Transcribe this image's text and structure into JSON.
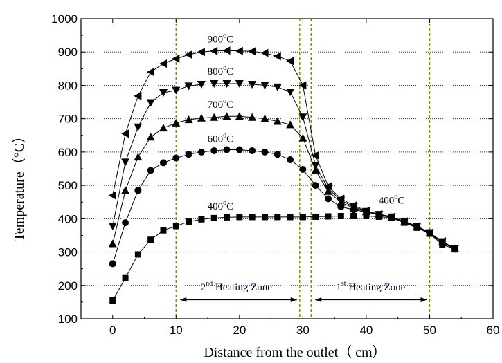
{
  "chart_data": {
    "type": "line",
    "xlabel": "Distance from the outlet（ cm）",
    "ylabel": "Temperature（°C）",
    "xlim": [
      -5,
      60
    ],
    "ylim": [
      100,
      1000
    ],
    "x_ticks": [
      0,
      10,
      20,
      30,
      40,
      50,
      60
    ],
    "y_ticks": [
      100,
      200,
      300,
      400,
      500,
      600,
      700,
      800,
      900,
      1000
    ],
    "grid": "horizontal dotted",
    "legend": "none",
    "vertical_guides": [
      10,
      29.5,
      31.3,
      50
    ],
    "series": [
      {
        "name": "400°C",
        "marker": "square",
        "x": [
          0,
          2,
          4,
          6,
          8,
          10,
          12,
          14,
          16,
          18,
          20,
          22,
          24,
          26,
          28,
          30,
          32,
          34,
          36,
          38,
          40,
          42,
          44,
          46,
          48,
          50,
          52,
          54
        ],
        "y": [
          155,
          222,
          293,
          337,
          365,
          378,
          391,
          398,
          402,
          404,
          405,
          405,
          405,
          405,
          405,
          405,
          406,
          407,
          408,
          408,
          408,
          406,
          403,
          388,
          373,
          355,
          323,
          308
        ]
      },
      {
        "name": "600°C",
        "marker": "circle",
        "x": [
          0,
          2,
          4,
          6,
          8,
          10,
          12,
          14,
          16,
          18,
          20,
          22,
          24,
          26,
          28,
          30,
          32,
          34,
          36,
          38,
          40,
          42,
          44,
          46,
          48,
          50,
          52,
          54
        ],
        "y": [
          265,
          388,
          485,
          545,
          568,
          582,
          593,
          600,
          604,
          607,
          607,
          604,
          600,
          593,
          577,
          548,
          500,
          460,
          436,
          427,
          420,
          412,
          403,
          389,
          375,
          356,
          328,
          309
        ]
      },
      {
        "name": "700°C",
        "marker": "triangle-up",
        "x": [
          0,
          2,
          4,
          6,
          8,
          10,
          12,
          14,
          16,
          18,
          20,
          22,
          24,
          26,
          28,
          30,
          32,
          34,
          36,
          38,
          40,
          42,
          44,
          46,
          48,
          50,
          52,
          54
        ],
        "y": [
          325,
          485,
          585,
          645,
          672,
          687,
          697,
          702,
          704,
          707,
          707,
          704,
          700,
          692,
          682,
          642,
          545,
          482,
          449,
          432,
          421,
          412,
          404,
          390,
          376,
          357,
          330,
          310
        ]
      },
      {
        "name": "800°C",
        "marker": "triangle-down",
        "x": [
          0,
          2,
          4,
          6,
          8,
          10,
          12,
          14,
          16,
          18,
          20,
          22,
          24,
          26,
          28,
          30,
          32,
          34,
          36,
          38,
          40,
          42,
          44,
          46,
          48,
          50,
          52,
          54
        ],
        "y": [
          378,
          570,
          675,
          748,
          778,
          785,
          798,
          803,
          805,
          805,
          805,
          803,
          800,
          795,
          780,
          705,
          560,
          490,
          455,
          436,
          422,
          413,
          405,
          391,
          377,
          358,
          331,
          311
        ]
      },
      {
        "name": "900°C",
        "marker": "triangle-left",
        "x": [
          0,
          2,
          4,
          6,
          8,
          10,
          12,
          14,
          16,
          18,
          20,
          22,
          24,
          26,
          28,
          30,
          32,
          34,
          36,
          38,
          40,
          42,
          44,
          46,
          48,
          50,
          52,
          54
        ],
        "y": [
          470,
          655,
          768,
          840,
          865,
          880,
          892,
          900,
          903,
          904,
          903,
          902,
          897,
          887,
          873,
          800,
          590,
          497,
          460,
          440,
          424,
          414,
          406,
          392,
          378,
          358,
          332,
          311
        ]
      }
    ],
    "annotations": [
      {
        "id": "900",
        "base": "900",
        "sup": "o",
        "tail": "C",
        "x": 17,
        "y": 928
      },
      {
        "id": "800",
        "base": "800",
        "sup": "o",
        "tail": "C",
        "x": 17,
        "y": 832
      },
      {
        "id": "700",
        "base": "700",
        "sup": "o",
        "tail": "C",
        "x": 17,
        "y": 733
      },
      {
        "id": "600",
        "base": "600",
        "sup": "o",
        "tail": "C",
        "x": 17,
        "y": 630
      },
      {
        "id": "400a",
        "base": "400",
        "sup": "o",
        "tail": "C",
        "x": 17,
        "y": 428
      },
      {
        "id": "400b",
        "base": "400",
        "sup": "o",
        "tail": "C",
        "x": 44,
        "y": 445
      },
      {
        "id": "zone2",
        "base": "2",
        "sup": "nd",
        "tail": " Heating Zone",
        "x": 19.5,
        "y": 185
      },
      {
        "id": "zone1",
        "base": "1",
        "sup": "st",
        "tail": " Heating Zone",
        "x": 40.7,
        "y": 185
      }
    ],
    "arrows": [
      {
        "from": 10,
        "to": 29.5,
        "y": 157
      },
      {
        "from": 31.3,
        "to": 50,
        "y": 157
      }
    ],
    "colors": {
      "axis": "#000000",
      "line": "#000000",
      "grid": "#2d2dae",
      "guide": "#8b8b00"
    }
  }
}
